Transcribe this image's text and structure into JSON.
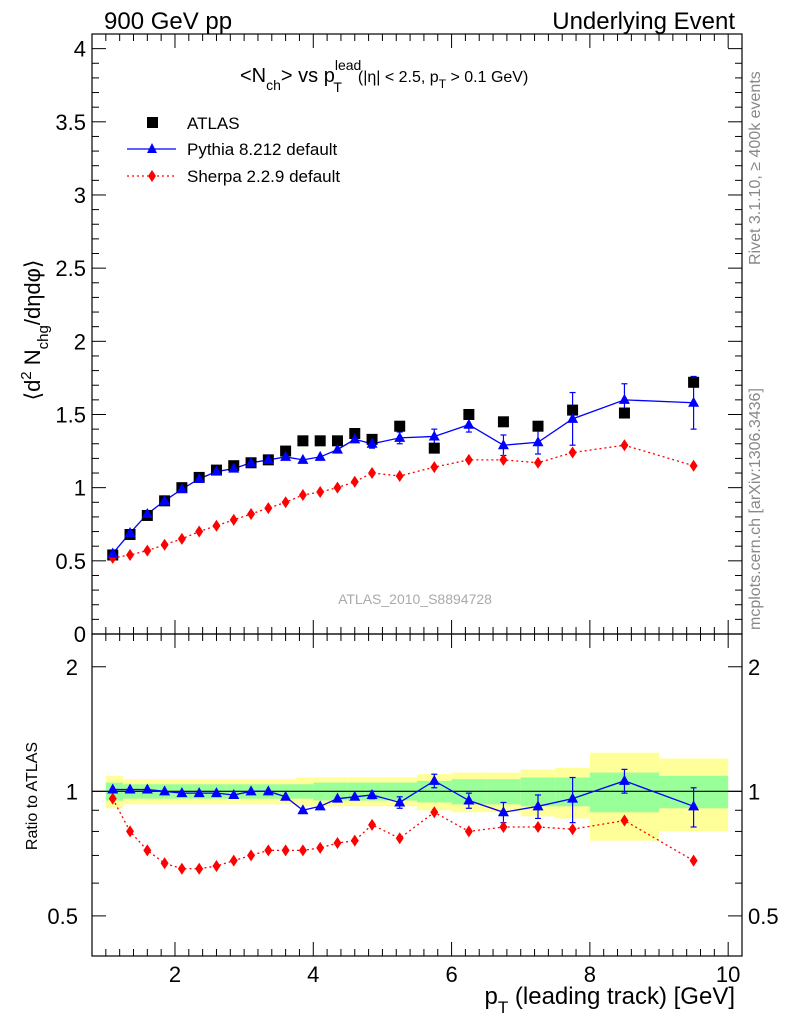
{
  "header": {
    "left": "900 GeV pp",
    "right": "Underlying Event"
  },
  "side_labels": {
    "top": "Rivet 3.1.10, ≥ 400k events",
    "bottom": "mcplots.cern.ch [arXiv:1306.3436]"
  },
  "analysis_tag": "ATLAS_2010_S8894728",
  "colors": {
    "atlas": "#000000",
    "pythia": "#0000ff",
    "sherpa": "#ff0000",
    "band_inner": "#99ff99",
    "band_outer": "#ffff99"
  },
  "chart_data": [
    {
      "type": "scatter",
      "title": {
        "base": "<N",
        "sub1": "ch",
        "mid": "> vs p",
        "sup": "lead",
        "sub2": "T",
        "cut_a": "(|η| < 2.5, p",
        "cut_sub": "T",
        "cut_b": " > 0.1 GeV)"
      },
      "ylabel": {
        "open": "⟨d",
        "sup": "2",
        "mid": " N",
        "sub": "chg",
        "close": "/dηdφ⟩"
      },
      "xlim": [
        0.8,
        10.2
      ],
      "ylim": [
        0,
        4.1
      ],
      "yticks": [
        0,
        0.5,
        1,
        1.5,
        2,
        2.5,
        3,
        3.5,
        4
      ],
      "ytick_labels": [
        "0",
        "0.5",
        "1",
        "1.5",
        "2",
        "2.5",
        "3",
        "3.5",
        "4"
      ],
      "x": [
        1.1,
        1.35,
        1.6,
        1.85,
        2.1,
        2.35,
        2.6,
        2.85,
        3.1,
        3.35,
        3.6,
        3.85,
        4.1,
        4.35,
        4.6,
        4.85,
        5.25,
        5.75,
        6.25,
        6.75,
        7.25,
        7.75,
        8.5,
        9.5
      ],
      "series": [
        {
          "name": "ATLAS",
          "marker": "square",
          "values": [
            0.54,
            0.68,
            0.81,
            0.91,
            1.0,
            1.07,
            1.12,
            1.15,
            1.17,
            1.19,
            1.25,
            1.32,
            1.32,
            1.32,
            1.37,
            1.33,
            1.42,
            1.27,
            1.5,
            1.45,
            1.42,
            1.53,
            1.51,
            1.72
          ]
        },
        {
          "name": "Pythia 8.212 default",
          "marker": "triangle",
          "line": "solid",
          "values": [
            0.55,
            0.69,
            0.82,
            0.91,
            0.99,
            1.06,
            1.11,
            1.13,
            1.17,
            1.19,
            1.21,
            1.19,
            1.21,
            1.26,
            1.33,
            1.3,
            1.34,
            1.35,
            1.43,
            1.29,
            1.31,
            1.47,
            1.6,
            1.58
          ],
          "errors": [
            0,
            0,
            0,
            0,
            0,
            0,
            0,
            0,
            0,
            0,
            0,
            0,
            0,
            0,
            0,
            0.03,
            0.04,
            0.05,
            0.05,
            0.07,
            0.08,
            0.18,
            0.11,
            0.18
          ]
        },
        {
          "name": "Sherpa 2.2.9 default",
          "marker": "diamond",
          "line": "dotted",
          "values": [
            0.52,
            0.54,
            0.57,
            0.61,
            0.65,
            0.7,
            0.74,
            0.78,
            0.82,
            0.86,
            0.9,
            0.95,
            0.97,
            1.0,
            1.04,
            1.1,
            1.08,
            1.14,
            1.19,
            1.19,
            1.17,
            1.24,
            1.29,
            1.15
          ]
        }
      ]
    },
    {
      "type": "scatter",
      "ylabel": "Ratio to ATLAS",
      "xlabel": {
        "p": "p",
        "sub": "T",
        "rest": " (leading track) [GeV]"
      },
      "xlim": [
        0.8,
        10.2
      ],
      "ylim": [
        0.4,
        2.4
      ],
      "xticks": [
        2,
        4,
        6,
        8,
        10
      ],
      "xtick_labels": [
        "2",
        "4",
        "6",
        "8",
        "10"
      ],
      "yticks": [
        0.5,
        1,
        2
      ],
      "ytick_labels": [
        "0.5",
        "1",
        "2"
      ],
      "bin_edges": [
        1.0,
        1.25,
        1.5,
        1.75,
        2.0,
        2.25,
        2.5,
        2.75,
        3.0,
        3.25,
        3.5,
        3.75,
        4.0,
        4.25,
        4.5,
        4.75,
        5.0,
        5.5,
        6.0,
        6.5,
        7.0,
        7.5,
        8.0,
        9.0,
        10.0
      ],
      "band_inner": [
        0.05,
        0.04,
        0.04,
        0.04,
        0.04,
        0.04,
        0.04,
        0.04,
        0.04,
        0.04,
        0.04,
        0.04,
        0.05,
        0.05,
        0.05,
        0.05,
        0.05,
        0.06,
        0.07,
        0.07,
        0.08,
        0.08,
        0.11,
        0.09,
        0.08
      ],
      "band_outer": [
        0.09,
        0.07,
        0.07,
        0.07,
        0.07,
        0.07,
        0.07,
        0.07,
        0.07,
        0.07,
        0.07,
        0.08,
        0.08,
        0.08,
        0.08,
        0.08,
        0.08,
        0.1,
        0.11,
        0.11,
        0.13,
        0.14,
        0.24,
        0.2,
        0.17
      ],
      "x": [
        1.1,
        1.35,
        1.6,
        1.85,
        2.1,
        2.35,
        2.6,
        2.85,
        3.1,
        3.35,
        3.6,
        3.85,
        4.1,
        4.35,
        4.6,
        4.85,
        5.25,
        5.75,
        6.25,
        6.75,
        7.25,
        7.75,
        8.5,
        9.5
      ],
      "series": [
        {
          "name": "Pythia 8.212 default",
          "marker": "triangle",
          "line": "solid",
          "values": [
            1.01,
            1.01,
            1.01,
            1.0,
            0.99,
            0.99,
            0.99,
            0.98,
            1.0,
            1.0,
            0.97,
            0.9,
            0.92,
            0.96,
            0.97,
            0.98,
            0.94,
            1.06,
            0.95,
            0.89,
            0.92,
            0.96,
            1.06,
            0.92
          ],
          "errors": [
            0,
            0,
            0,
            0,
            0,
            0,
            0,
            0,
            0,
            0,
            0,
            0,
            0,
            0,
            0,
            0.02,
            0.03,
            0.04,
            0.04,
            0.05,
            0.06,
            0.12,
            0.07,
            0.1
          ]
        },
        {
          "name": "Sherpa 2.2.9 default",
          "marker": "diamond",
          "line": "dotted",
          "values": [
            0.96,
            0.8,
            0.72,
            0.67,
            0.65,
            0.65,
            0.66,
            0.68,
            0.7,
            0.72,
            0.72,
            0.72,
            0.73,
            0.75,
            0.76,
            0.83,
            0.77,
            0.89,
            0.8,
            0.82,
            0.82,
            0.81,
            0.85,
            0.68
          ]
        }
      ]
    }
  ]
}
